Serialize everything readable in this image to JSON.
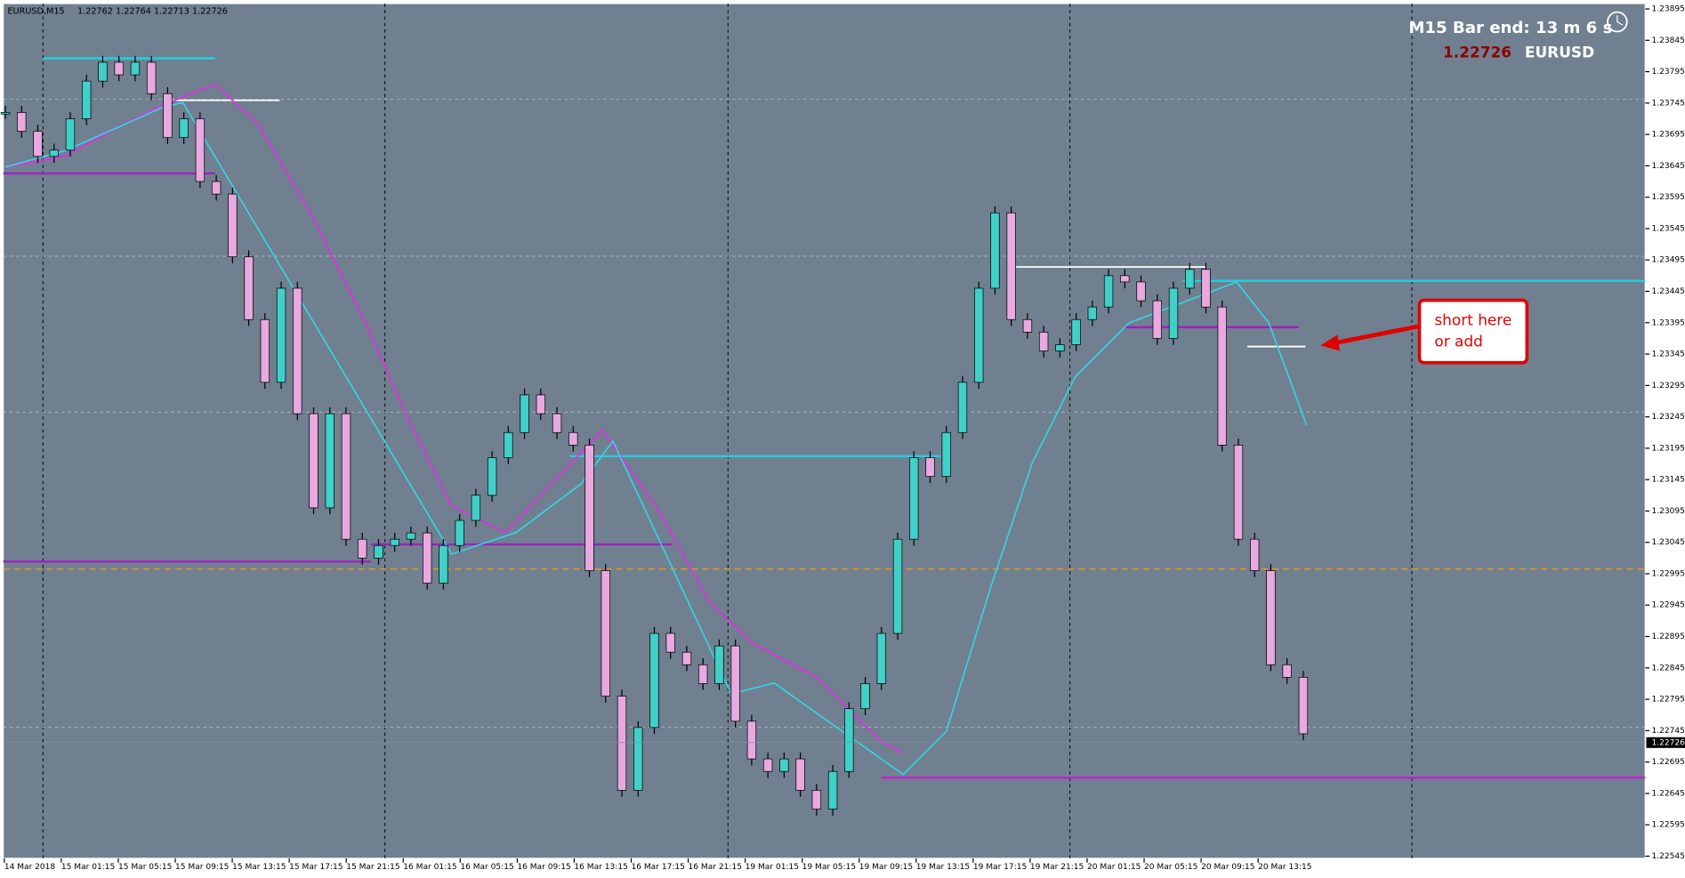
{
  "header": {
    "symbol": "EURUSD,M15",
    "quote": "1.22762 1.22764 1.22713 1.22726"
  },
  "overlay": {
    "bar_timer": "M15 Bar end: 13 m 6 s",
    "price": "1.22726",
    "symbol": "EURUSD"
  },
  "price_axis": {
    "labels": [
      "1.23895",
      "1.23845",
      "1.23795",
      "1.23745",
      "1.23695",
      "1.23645",
      "1.23595",
      "1.23545",
      "1.23495",
      "1.23445",
      "1.23395",
      "1.23345",
      "1.23295",
      "1.23245",
      "1.23195",
      "1.23145",
      "1.23095",
      "1.23045",
      "1.22995",
      "1.22945",
      "1.22895",
      "1.22845",
      "1.22795",
      "1.22745",
      "1.22695",
      "1.22645",
      "1.22595",
      "1.22545"
    ],
    "current": "1.22726"
  },
  "time_axis": {
    "labels": [
      "14 Mar 2018",
      "15 Mar 01:15",
      "15 Mar 05:15",
      "15 Mar 09:15",
      "15 Mar 13:15",
      "15 Mar 17:15",
      "15 Mar 21:15",
      "16 Mar 01:15",
      "16 Mar 05:15",
      "16 Mar 09:15",
      "16 Mar 13:15",
      "16 Mar 17:15",
      "16 Mar 21:15",
      "19 Mar 01:15",
      "19 Mar 05:15",
      "19 Mar 09:15",
      "19 Mar 13:15",
      "19 Mar 17:15",
      "19 Mar 21:15",
      "20 Mar 01:15",
      "20 Mar 05:15",
      "20 Mar 09:15",
      "20 Mar 13:15"
    ]
  },
  "annotation": {
    "lines": [
      "short here",
      "or add"
    ]
  },
  "price_path": [
    1.2373,
    1.237,
    1.2366,
    1.2367,
    1.2372,
    1.2378,
    1.2381,
    1.2379,
    1.2381,
    1.2376,
    1.2369,
    1.2372,
    1.2362,
    1.236,
    1.235,
    1.234,
    1.233,
    1.2345,
    1.2325,
    1.231,
    1.2325,
    1.2305,
    1.2302,
    1.2304,
    1.2305,
    1.2306,
    1.2298,
    1.2304,
    1.2308,
    1.2312,
    1.2318,
    1.2322,
    1.2328,
    1.2325,
    1.2322,
    1.232,
    1.23,
    1.228,
    1.2265,
    1.2275,
    1.229,
    1.2287,
    1.2285,
    1.2282,
    1.2288,
    1.2276,
    1.227,
    1.2268,
    1.227,
    1.2265,
    1.2262,
    1.2268,
    1.2278,
    1.2282,
    1.229,
    1.2305,
    1.2318,
    1.2315,
    1.2322,
    1.233,
    1.2345,
    1.2357,
    1.234,
    1.2338,
    1.2335,
    1.2336,
    1.234,
    1.2342,
    1.2347,
    1.2346,
    1.2343,
    1.2337,
    1.2345,
    1.2348,
    1.2342,
    1.232,
    1.2305,
    1.23,
    1.2285,
    1.2283,
    1.2274
  ]
}
